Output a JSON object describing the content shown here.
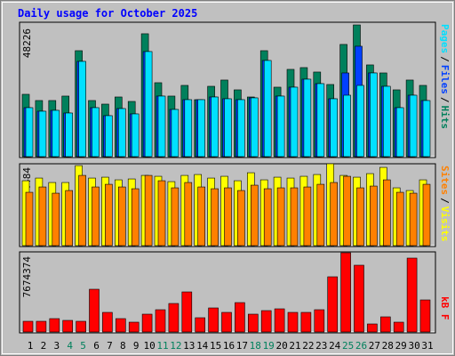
{
  "chart_data": [
    {
      "type": "bar",
      "title": "Daily usage for October 2025",
      "title_color": "#0000ff",
      "categories": [
        "1",
        "2",
        "3",
        "4",
        "5",
        "6",
        "7",
        "8",
        "9",
        "10",
        "11",
        "12",
        "13",
        "14",
        "15",
        "16",
        "17",
        "18",
        "19",
        "20",
        "21",
        "22",
        "23",
        "24",
        "25",
        "26",
        "27",
        "28",
        "29",
        "30",
        "31"
      ],
      "category_colors": [
        "#000000",
        "#000000",
        "#000000",
        "#00805c",
        "#00805c",
        "#000000",
        "#000000",
        "#000000",
        "#000000",
        "#000000",
        "#00805c",
        "#00805c",
        "#000000",
        "#000000",
        "#000000",
        "#000000",
        "#000000",
        "#00805c",
        "#00805c",
        "#000000",
        "#000000",
        "#000000",
        "#000000",
        "#000000",
        "#00805c",
        "#00805c",
        "#000000",
        "#000000",
        "#000000",
        "#000000",
        "#000000"
      ],
      "legend_separator": "/",
      "series": [
        {
          "name": "Hits",
          "color": "#00805c",
          "values": [
            22820,
            20540,
            20540,
            22170,
            38790,
            20540,
            19230,
            21840,
            20210,
            44990,
            27060,
            22170,
            26080,
            20860,
            25750,
            28040,
            24450,
            21840,
            38790,
            25430,
            31950,
            32600,
            30970,
            26410,
            41080,
            48226,
            33580,
            30640,
            24450,
            28040,
            26080
          ]
        },
        {
          "name": "Files",
          "color": "#0040ff",
          "values": [
            17930,
            16630,
            16950,
            15970,
            34880,
            17930,
            15000,
            17600,
            15650,
            38470,
            22170,
            17280,
            20860,
            20860,
            21840,
            21190,
            20860,
            21520,
            35210,
            22170,
            25430,
            28360,
            26730,
            21190,
            30640,
            40420,
            30640,
            25750,
            17930,
            22490,
            20540
          ]
        },
        {
          "name": "Pages",
          "color": "#00e0ff",
          "values": [
            17930,
            16630,
            16950,
            15970,
            34880,
            17930,
            15000,
            17600,
            15650,
            38470,
            22170,
            17280,
            20860,
            20860,
            21840,
            21190,
            20860,
            21520,
            35210,
            22170,
            25430,
            28360,
            26730,
            21190,
            22490,
            26080,
            30640,
            25750,
            17930,
            22490,
            20540
          ]
        }
      ],
      "ylim": [
        0,
        48226
      ],
      "yticks": [
        48226
      ]
    },
    {
      "type": "bar",
      "legend_separator": "/",
      "series": [
        {
          "name": "Visits",
          "color": "#ffff00",
          "values": [
            3555,
            3701,
            3458,
            3458,
            4383,
            3701,
            3750,
            3604,
            3653,
            3847,
            3799,
            3506,
            3847,
            3896,
            3701,
            3799,
            3555,
            3993,
            3604,
            3750,
            3701,
            3799,
            3896,
            4484,
            3847,
            3750,
            3945,
            4286,
            3166,
            3019,
            3604
          ]
        },
        {
          "name": "Sites",
          "color": "#ff8000",
          "values": [
            2922,
            3214,
            2873,
            3019,
            3847,
            3214,
            3360,
            3214,
            3117,
            3847,
            3555,
            3166,
            3458,
            3214,
            3117,
            3166,
            3019,
            3312,
            3117,
            3166,
            3166,
            3214,
            3360,
            3458,
            3799,
            3166,
            3263,
            3604,
            2922,
            2873,
            3360
          ]
        }
      ],
      "ylim": [
        0,
        4484
      ],
      "yticks": [
        4484
      ]
    },
    {
      "type": "bar",
      "series": [
        {
          "name": "kB F",
          "color": "#ff0000",
          "values": [
            1034748,
            1034748,
            1293435,
            1120977,
            1034748,
            4138992,
            1897038,
            1293435,
            948519,
            1724580,
            2155725,
            2759328,
            3880305,
            1379664,
            2328183,
            1897038,
            2845557,
            1724580,
            2069496,
            2241954,
            1897038,
            1897038,
            2155725,
            5346198,
            7674374,
            6467175,
            776061,
            1465893,
            948519,
            7157007,
            3104244
          ]
        }
      ],
      "ylim": [
        0,
        7674374
      ],
      "yticks": [
        7674374
      ]
    }
  ]
}
